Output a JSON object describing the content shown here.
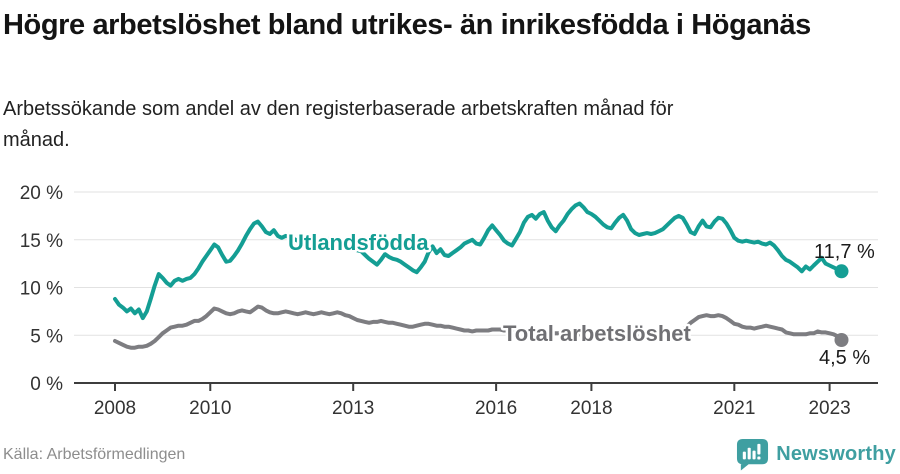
{
  "header": {
    "title": "Högre arbetslöshet bland utrikes- än inrikesfödda i Höganäs",
    "subtitle": "Arbetssökande som andel av den registerbaserade arbetskraften månad för månad."
  },
  "footer": {
    "source": "Källa: Arbetsförmedlingen",
    "brand": "Newsworthy",
    "brand_icon": "speech-bubble-bar-chart-icon"
  },
  "colors": {
    "accent_teal": "#149e94",
    "series_gray": "#7d7d81",
    "brand_teal": "#3f9fa1",
    "grid": "#e2e2e2",
    "axis": "#3d3d3d",
    "tick_text": "#333333",
    "value_label_text": "#1b1b1b"
  },
  "chart_data": {
    "type": "line",
    "unit": "%",
    "frequency": "monthly",
    "grid": true,
    "legend_position": "inline-labels",
    "x_start_year": 2008,
    "ylim": [
      0,
      20
    ],
    "x_ticks": [
      {
        "year": 2008,
        "label": "2008"
      },
      {
        "year": 2010,
        "label": "2010"
      },
      {
        "year": 2013,
        "label": "2013"
      },
      {
        "year": 2016,
        "label": "2016"
      },
      {
        "year": 2018,
        "label": "2018"
      },
      {
        "year": 2021,
        "label": "2021"
      },
      {
        "year": 2023,
        "label": "2023"
      }
    ],
    "y_ticks": [
      {
        "value": 0,
        "label": "0 %"
      },
      {
        "value": 5,
        "label": "5 %"
      },
      {
        "value": 10,
        "label": "10 %"
      },
      {
        "value": 15,
        "label": "15 %"
      },
      {
        "value": 20,
        "label": "20 %"
      }
    ],
    "series": [
      {
        "id": "utlandsfodda",
        "name": "Utlandsfödda",
        "color": "#149e94",
        "label_color": "#149e94",
        "end_label": "11,7 %",
        "end_value": 11.7,
        "values": [
          8.8,
          8.2,
          7.9,
          7.5,
          7.8,
          7.3,
          7.7,
          6.8,
          7.5,
          8.8,
          10.2,
          11.4,
          11.0,
          10.5,
          10.2,
          10.7,
          10.9,
          10.7,
          10.9,
          11.0,
          11.4,
          12.0,
          12.7,
          13.3,
          13.9,
          14.5,
          14.2,
          13.4,
          12.7,
          12.8,
          13.3,
          13.9,
          14.6,
          15.4,
          16.1,
          16.7,
          16.9,
          16.4,
          15.8,
          15.6,
          16.0,
          15.4,
          15.2,
          15.4,
          15.3,
          15.1,
          14.9,
          14.8,
          14.7,
          14.9,
          15.1,
          14.9,
          14.7,
          14.9,
          15.1,
          15.2,
          15.0,
          14.8,
          14.5,
          14.2,
          14.0,
          13.9,
          13.8,
          13.4,
          13.0,
          12.7,
          12.4,
          12.9,
          13.5,
          13.2,
          13.0,
          12.9,
          12.7,
          12.4,
          12.1,
          11.8,
          11.6,
          12.1,
          12.7,
          13.7,
          14.3,
          13.6,
          14.0,
          13.4,
          13.3,
          13.6,
          13.9,
          14.2,
          14.6,
          14.8,
          15.0,
          14.6,
          14.5,
          15.2,
          16.0,
          16.5,
          16.0,
          15.5,
          14.9,
          14.6,
          14.4,
          15.1,
          15.8,
          16.8,
          17.4,
          17.6,
          17.2,
          17.7,
          17.9,
          17.0,
          16.3,
          15.9,
          16.5,
          17.0,
          17.7,
          18.2,
          18.6,
          18.8,
          18.4,
          17.9,
          17.7,
          17.4,
          17.0,
          16.6,
          16.3,
          16.2,
          16.8,
          17.3,
          17.6,
          17.0,
          16.1,
          15.7,
          15.5,
          15.6,
          15.7,
          15.6,
          15.7,
          15.9,
          16.1,
          16.5,
          16.9,
          17.3,
          17.5,
          17.3,
          16.6,
          15.8,
          15.6,
          16.4,
          17.0,
          16.4,
          16.3,
          16.9,
          17.3,
          17.2,
          16.7,
          16.0,
          15.2,
          14.9,
          14.8,
          14.9,
          14.8,
          14.7,
          14.8,
          14.6,
          14.5,
          14.7,
          14.4,
          13.9,
          13.3,
          12.9,
          12.7,
          12.4,
          12.1,
          11.7,
          12.2,
          11.9,
          12.3,
          12.7,
          13.1,
          12.5,
          12.3,
          12.1,
          11.9,
          11.7
        ]
      },
      {
        "id": "total-arbetsloshet",
        "name": "Total arbetslöshet",
        "color": "#7d7d81",
        "label_color": "#707074",
        "end_label": "4,5 %",
        "end_value": 4.5,
        "values": [
          4.4,
          4.2,
          4.0,
          3.8,
          3.7,
          3.7,
          3.8,
          3.8,
          3.9,
          4.1,
          4.4,
          4.8,
          5.2,
          5.5,
          5.8,
          5.9,
          6.0,
          6.0,
          6.1,
          6.3,
          6.5,
          6.5,
          6.7,
          7.0,
          7.4,
          7.8,
          7.7,
          7.5,
          7.3,
          7.2,
          7.3,
          7.5,
          7.6,
          7.5,
          7.4,
          7.7,
          8.0,
          7.9,
          7.6,
          7.4,
          7.3,
          7.3,
          7.4,
          7.5,
          7.4,
          7.3,
          7.2,
          7.3,
          7.4,
          7.3,
          7.2,
          7.3,
          7.4,
          7.3,
          7.2,
          7.3,
          7.4,
          7.3,
          7.1,
          7.0,
          6.8,
          6.6,
          6.5,
          6.4,
          6.3,
          6.4,
          6.4,
          6.5,
          6.4,
          6.3,
          6.3,
          6.2,
          6.1,
          6.0,
          5.9,
          5.9,
          6.0,
          6.1,
          6.2,
          6.2,
          6.1,
          6.0,
          6.0,
          5.9,
          5.9,
          5.8,
          5.7,
          5.6,
          5.5,
          5.5,
          5.4,
          5.5,
          5.5,
          5.5,
          5.5,
          5.6,
          5.6,
          5.6,
          5.5,
          5.5,
          5.4,
          5.5,
          5.5,
          5.6,
          5.5,
          5.5,
          5.4,
          5.4,
          5.3,
          5.3,
          5.2,
          5.2,
          5.2,
          5.3,
          5.2,
          5.2,
          5.1,
          5.1,
          5.0,
          5.0,
          5.0,
          5.0,
          4.9,
          4.9,
          5.0,
          5.0,
          5.1,
          5.1,
          5.1,
          5.0,
          5.0,
          4.9,
          4.9,
          4.8,
          4.8,
          4.9,
          4.9,
          5.0,
          5.0,
          5.1,
          5.1,
          5.2,
          5.4,
          5.6,
          5.9,
          6.3,
          6.6,
          6.9,
          7.0,
          7.1,
          7.0,
          7.0,
          7.1,
          7.0,
          6.8,
          6.5,
          6.2,
          6.1,
          5.9,
          5.8,
          5.8,
          5.7,
          5.8,
          5.9,
          6.0,
          5.9,
          5.8,
          5.7,
          5.6,
          5.3,
          5.2,
          5.1,
          5.1,
          5.1,
          5.1,
          5.2,
          5.2,
          5.4,
          5.3,
          5.3,
          5.2,
          5.1,
          4.9,
          4.5
        ]
      }
    ]
  }
}
